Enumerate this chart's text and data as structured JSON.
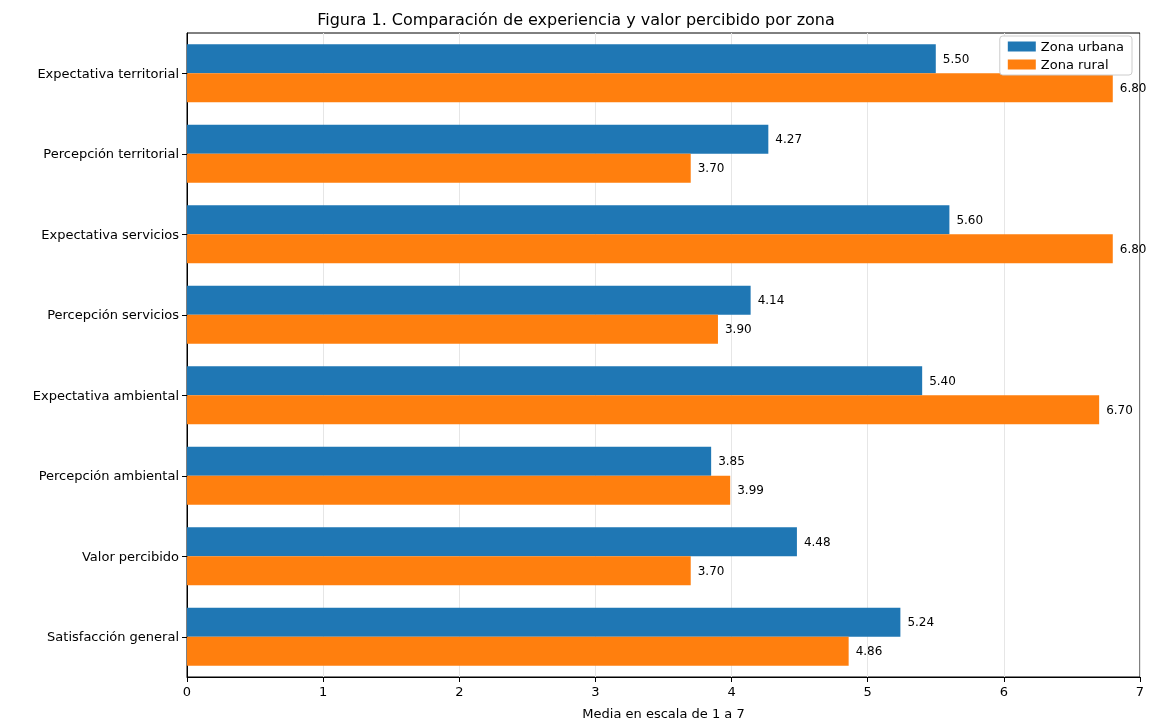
{
  "chart_data": {
    "type": "bar",
    "orientation": "horizontal",
    "title": "Figura 1. Comparación de experiencia y valor percibido por zona",
    "xlabel": "Media en escala de 1 a 7",
    "categories": [
      "Expectativa territorial",
      "Percepción territorial",
      "Expectativa servicios",
      "Percepción servicios",
      "Expectativa ambiental",
      "Percepción ambiental",
      "Valor percibido",
      "Satisfacción general"
    ],
    "series": [
      {
        "name": "Zona urbana",
        "color": "#1f77b4",
        "values": [
          5.5,
          4.27,
          5.6,
          4.14,
          5.4,
          3.85,
          4.48,
          5.24
        ],
        "value_labels": [
          "5.50",
          "4.27",
          "5.60",
          "4.14",
          "5.40",
          "3.85",
          "4.48",
          "5.24"
        ]
      },
      {
        "name": "Zona rural",
        "color": "#ff7f0e",
        "values": [
          6.8,
          3.7,
          6.8,
          3.9,
          6.7,
          3.99,
          3.7,
          4.86
        ],
        "value_labels": [
          "6.80",
          "3.70",
          "6.80",
          "3.90",
          "6.70",
          "3.99",
          "3.70",
          "4.86"
        ]
      }
    ],
    "xlim": [
      0,
      7
    ],
    "xticks": [
      0,
      1,
      2,
      3,
      4,
      5,
      6,
      7
    ],
    "grid": "x",
    "legend": "top right"
  }
}
